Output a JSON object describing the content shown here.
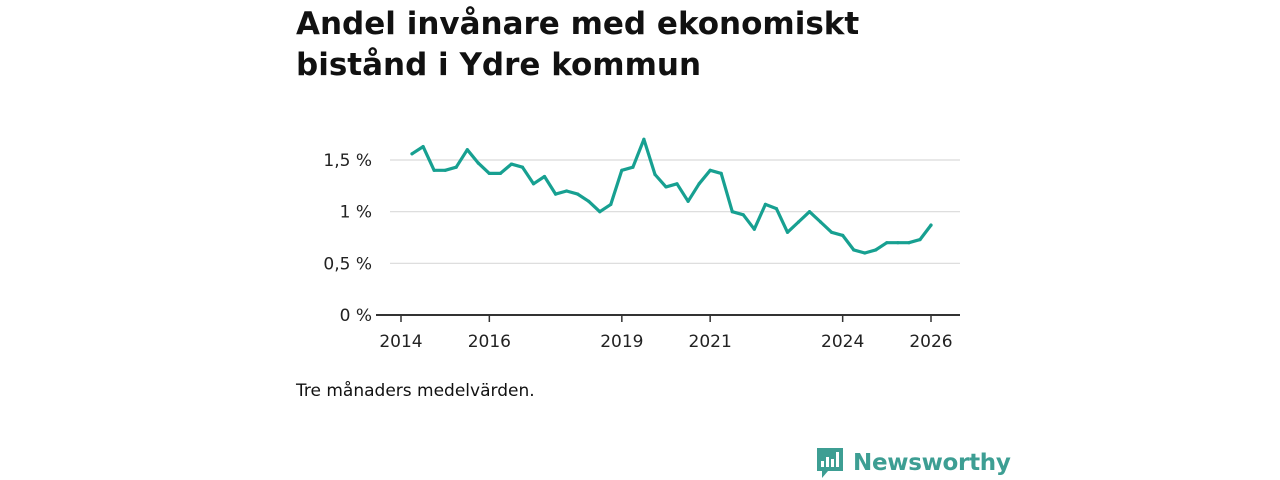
{
  "title": "Andel invånare med ekonomiskt bistånd i Ydre kommun",
  "caption": "Tre månaders medelvärden.",
  "brand": {
    "name": "Newsworthy",
    "color": "#3d9e93"
  },
  "colors": {
    "line": "#17a091",
    "grid": "#d9d9d9",
    "axis": "#333333"
  },
  "chart_data": {
    "type": "line",
    "title": "Andel invånare med ekonomiskt bistånd i Ydre kommun",
    "xlabel": "",
    "ylabel": "",
    "ylim": [
      0,
      1.7
    ],
    "xlim": [
      2014,
      2026.3
    ],
    "yticks": [
      {
        "value": 0,
        "label": "0 %"
      },
      {
        "value": 0.5,
        "label": "0,5 %"
      },
      {
        "value": 1,
        "label": "1 %"
      },
      {
        "value": 1.5,
        "label": "1,5 %"
      }
    ],
    "xticks": [
      {
        "value": 2014,
        "label": "2014"
      },
      {
        "value": 2016,
        "label": "2016"
      },
      {
        "value": 2019,
        "label": "2019"
      },
      {
        "value": 2021,
        "label": "2021"
      },
      {
        "value": 2024,
        "label": "2024"
      },
      {
        "value": 2026,
        "label": "2026"
      }
    ],
    "series": [
      {
        "name": "Andel invånare",
        "x": [
          2014.25,
          2014.5,
          2014.75,
          2015.0,
          2015.25,
          2015.5,
          2015.75,
          2016.0,
          2016.25,
          2016.5,
          2016.75,
          2017.0,
          2017.25,
          2017.5,
          2017.75,
          2018.0,
          2018.25,
          2018.5,
          2018.75,
          2019.0,
          2019.25,
          2019.5,
          2019.75,
          2020.0,
          2020.25,
          2020.5,
          2020.75,
          2021.0,
          2021.25,
          2021.5,
          2021.75,
          2022.0,
          2022.25,
          2022.5,
          2022.75,
          2023.0,
          2023.25,
          2023.5,
          2023.75,
          2024.0,
          2024.25,
          2024.5,
          2024.75,
          2025.0,
          2025.25,
          2025.5,
          2025.75,
          2026.0
        ],
        "values": [
          1.56,
          1.63,
          1.4,
          1.4,
          1.43,
          1.6,
          1.47,
          1.37,
          1.37,
          1.46,
          1.43,
          1.27,
          1.34,
          1.17,
          1.2,
          1.17,
          1.1,
          1.0,
          1.07,
          1.4,
          1.43,
          1.7,
          1.36,
          1.24,
          1.27,
          1.1,
          1.27,
          1.4,
          1.37,
          1.0,
          0.97,
          0.83,
          1.07,
          1.03,
          0.8,
          0.9,
          1.0,
          0.9,
          0.8,
          0.77,
          0.63,
          0.6,
          0.63,
          0.7,
          0.7,
          0.7,
          0.73,
          0.87
        ]
      }
    ]
  }
}
